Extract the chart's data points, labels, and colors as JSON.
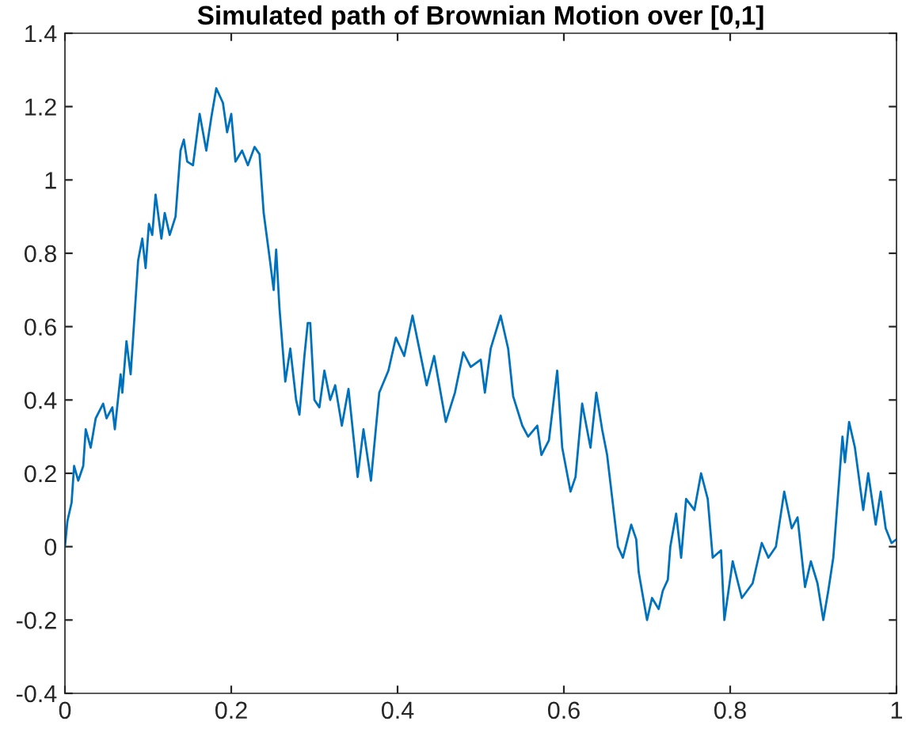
{
  "chart_data": {
    "type": "line",
    "title": "Simulated path of Brownian Motion over [0,1]",
    "xlim": [
      0,
      1
    ],
    "xticks": [
      0,
      0.2,
      0.4,
      0.6,
      0.8,
      1
    ],
    "ylim": [
      -0.4,
      1.4
    ],
    "yticks": [
      -0.4,
      -0.2,
      0,
      0.2,
      0.4,
      0.6,
      0.8,
      1,
      1.2,
      1.4
    ],
    "grid": false,
    "series": [
      {
        "color": "#0072bd",
        "x": [
          0,
          0.003,
          0.008,
          0.011,
          0.016,
          0.022,
          0.025,
          0.031,
          0.037,
          0.046,
          0.05,
          0.057,
          0.06,
          0.067,
          0.069,
          0.074,
          0.079,
          0.082,
          0.088,
          0.093,
          0.097,
          0.101,
          0.105,
          0.109,
          0.116,
          0.12,
          0.126,
          0.133,
          0.139,
          0.143,
          0.147,
          0.154,
          0.162,
          0.17,
          0.176,
          0.182,
          0.19,
          0.195,
          0.2,
          0.205,
          0.213,
          0.22,
          0.228,
          0.234,
          0.239,
          0.246,
          0.251,
          0.254,
          0.258,
          0.265,
          0.271,
          0.278,
          0.282,
          0.288,
          0.292,
          0.295,
          0.3,
          0.306,
          0.312,
          0.319,
          0.325,
          0.333,
          0.341,
          0.352,
          0.359,
          0.368,
          0.378,
          0.389,
          0.398,
          0.408,
          0.418,
          0.427,
          0.435,
          0.444,
          0.458,
          0.469,
          0.479,
          0.488,
          0.5,
          0.505,
          0.512,
          0.524,
          0.533,
          0.539,
          0.55,
          0.557,
          0.568,
          0.573,
          0.582,
          0.592,
          0.598,
          0.608,
          0.614,
          0.622,
          0.632,
          0.639,
          0.646,
          0.652,
          0.665,
          0.671,
          0.681,
          0.687,
          0.69,
          0.7,
          0.706,
          0.714,
          0.719,
          0.725,
          0.728,
          0.735,
          0.741,
          0.747,
          0.757,
          0.765,
          0.773,
          0.779,
          0.789,
          0.793,
          0.803,
          0.814,
          0.827,
          0.838,
          0.846,
          0.855,
          0.865,
          0.874,
          0.881,
          0.89,
          0.897,
          0.905,
          0.912,
          0.918,
          0.924,
          0.935,
          0.938,
          0.943,
          0.95,
          0.96,
          0.966,
          0.975,
          0.981,
          0.987,
          0.994,
          1.0
        ],
        "values": [
          0,
          0.07,
          0.12,
          0.22,
          0.18,
          0.22,
          0.32,
          0.27,
          0.35,
          0.39,
          0.35,
          0.38,
          0.32,
          0.47,
          0.42,
          0.56,
          0.47,
          0.57,
          0.78,
          0.84,
          0.76,
          0.88,
          0.85,
          0.96,
          0.84,
          0.91,
          0.85,
          0.9,
          1.08,
          1.11,
          1.05,
          1.04,
          1.18,
          1.08,
          1.17,
          1.25,
          1.21,
          1.13,
          1.18,
          1.05,
          1.08,
          1.04,
          1.09,
          1.07,
          0.91,
          0.79,
          0.7,
          0.81,
          0.65,
          0.45,
          0.54,
          0.4,
          0.36,
          0.52,
          0.61,
          0.61,
          0.4,
          0.38,
          0.48,
          0.4,
          0.44,
          0.33,
          0.43,
          0.19,
          0.32,
          0.18,
          0.42,
          0.48,
          0.57,
          0.52,
          0.63,
          0.53,
          0.44,
          0.52,
          0.34,
          0.42,
          0.53,
          0.49,
          0.51,
          0.42,
          0.54,
          0.63,
          0.54,
          0.41,
          0.33,
          0.3,
          0.33,
          0.25,
          0.29,
          0.48,
          0.27,
          0.15,
          0.19,
          0.39,
          0.27,
          0.42,
          0.32,
          0.25,
          0,
          -0.03,
          0.06,
          0.02,
          -0.07,
          -0.2,
          -0.14,
          -0.17,
          -0.12,
          -0.09,
          0,
          0.09,
          -0.03,
          0.13,
          0.1,
          0.2,
          0.13,
          -0.03,
          -0.01,
          -0.2,
          -0.04,
          -0.14,
          -0.1,
          0.01,
          -0.03,
          0,
          0.15,
          0.05,
          0.08,
          -0.11,
          -0.04,
          -0.1,
          -0.2,
          -0.12,
          -0.03,
          0.3,
          0.23,
          0.34,
          0.27,
          0.1,
          0.2,
          0.06,
          0.15,
          0.05,
          0.01,
          0.02
        ]
      }
    ]
  }
}
